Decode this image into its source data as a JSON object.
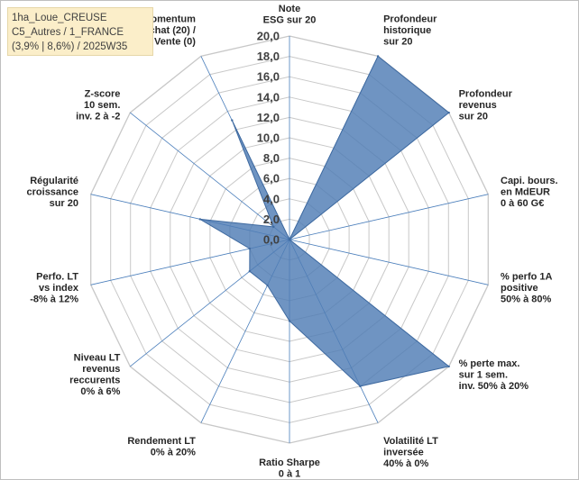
{
  "info_box": {
    "line1": "1ha_Loue_CREUSE",
    "line2": "C5_Autres / 1_FRANCE",
    "line3": "(3,9% | 8,6%) / 2025W35"
  },
  "colors": {
    "fill": "#4f7cb5",
    "grid": "#c8c8c8",
    "spoke": "#4a7ebb"
  },
  "chart_data": {
    "type": "radar",
    "title": "",
    "r_range": [
      0,
      20
    ],
    "r_ticks": [
      "0,0",
      "2,0",
      "4,0",
      "6,0",
      "8,0",
      "10,0",
      "12,0",
      "14,0",
      "16,0",
      "18,0",
      "20,0"
    ],
    "categories": [
      [
        "Note",
        "ESG sur 20"
      ],
      [
        "Profondeur",
        "historique",
        "sur 20"
      ],
      [
        "Profondeur",
        "revenus",
        "sur 20"
      ],
      [
        "Capi. bours.",
        "en MdEUR",
        "0 à 60 G€"
      ],
      [
        "% perfo 1A",
        "positive",
        "50% à 80%"
      ],
      [
        "% perte max.",
        "sur 1 sem.",
        "inv. 50% à 20%"
      ],
      [
        "Volatilité LT",
        "inversée",
        "40% à 0%"
      ],
      [
        "Ratio Sharpe",
        "0 à 1"
      ],
      [
        "Rendement LT",
        "0% à 20%"
      ],
      [
        "Niveau LT",
        "revenus",
        "reccurents",
        "0% à 6%"
      ],
      [
        "Perfo. LT",
        "vs index",
        "-8% à 12%"
      ],
      [
        "Régularité",
        "croissance",
        "sur 20"
      ],
      [
        "Z-score",
        "10 sem.",
        "inv. 2 à -2"
      ],
      [
        "Momentum",
        "Achat (20) /",
        "Vente (0)"
      ]
    ],
    "series": [
      {
        "values": [
          0,
          20,
          20,
          0,
          0,
          20,
          16,
          8,
          5,
          5,
          4,
          9,
          2,
          13
        ]
      }
    ],
    "grid": true,
    "legend": "none"
  }
}
